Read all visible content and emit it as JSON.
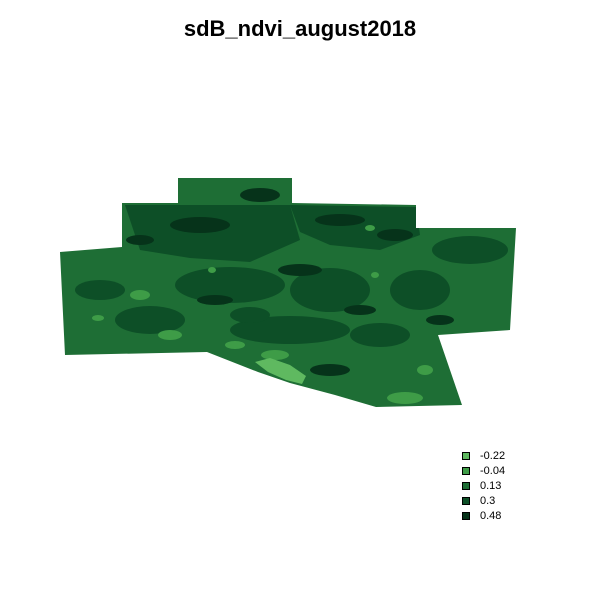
{
  "title": "sdB_ndvi_august2018",
  "legend": {
    "items": [
      {
        "label": "-0.22",
        "color": "#5fb960"
      },
      {
        "label": "-0.04",
        "color": "#3e9c47"
      },
      {
        "label": "0.13",
        "color": "#1e6e35"
      },
      {
        "label": "0.3",
        "color": "#0d4f27"
      },
      {
        "label": "0.48",
        "color": "#06331a"
      }
    ]
  }
}
